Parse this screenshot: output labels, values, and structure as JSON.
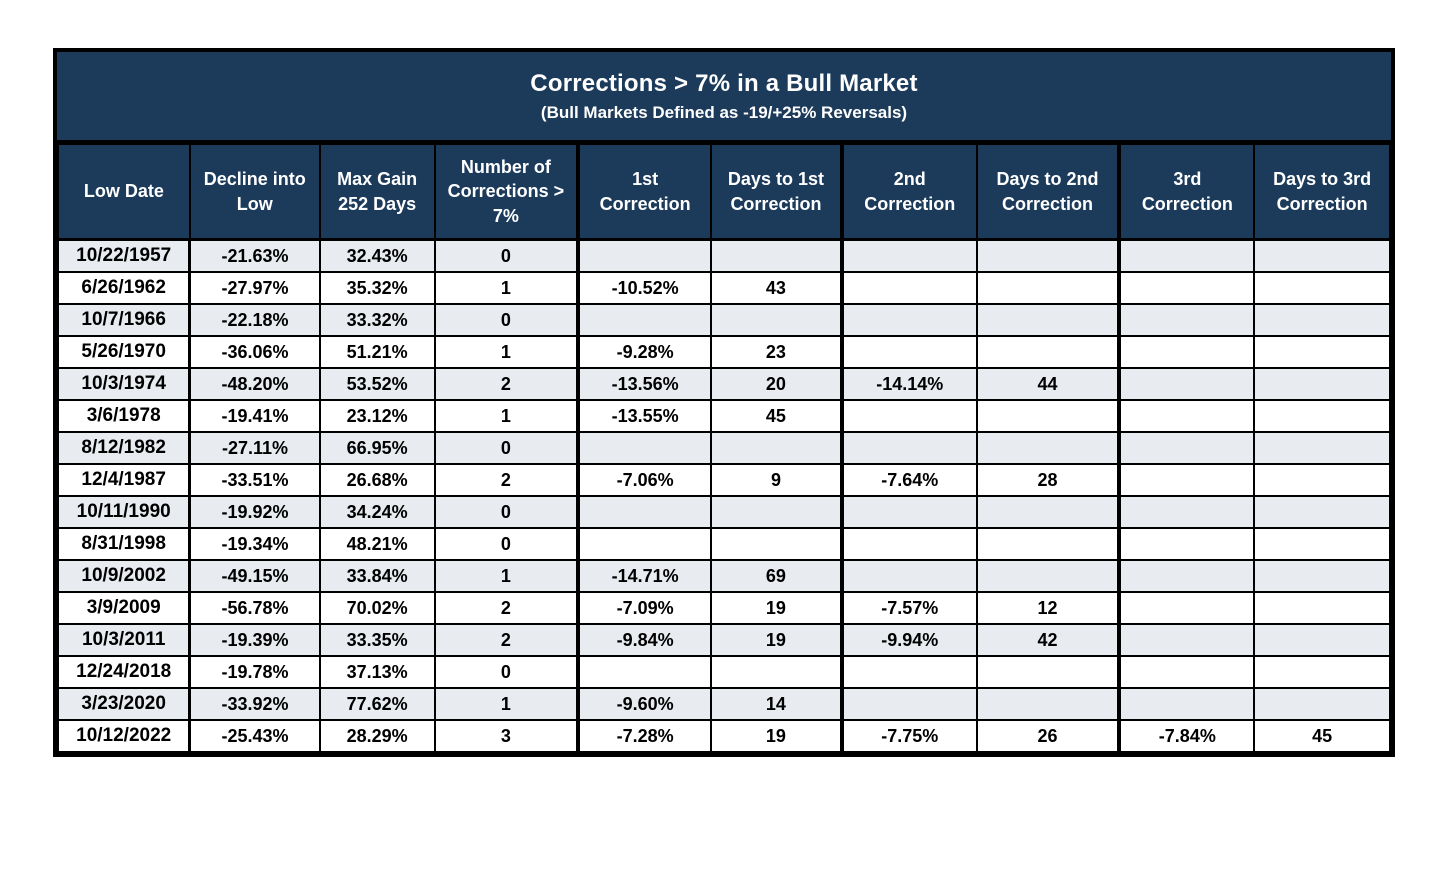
{
  "colors": {
    "header_bg": "#1C3B5B",
    "row_alt_bg": "#E8ECF1",
    "row_bg": "#FFFFFF",
    "border": "#000000",
    "header_text": "#FFFFFF",
    "body_text": "#000000"
  },
  "chart_data": {
    "type": "table",
    "title": "Corrections > 7% in a Bull Market",
    "subtitle": "(Bull Markets Defined as -19/+25% Reversals)",
    "columns": [
      "Low Date",
      "Decline into\nLow",
      "Max Gain\n252 Days",
      "Number of\nCorrections >\n7%",
      "1st\nCorrection",
      "Days to 1st\nCorrection",
      "2nd\nCorrection",
      "Days to 2nd\nCorrection",
      "3rd\nCorrection",
      "Days to 3rd\nCorrection"
    ],
    "rows": [
      [
        "10/22/1957",
        "-21.63%",
        "32.43%",
        "0",
        "",
        "",
        "",
        "",
        "",
        ""
      ],
      [
        "6/26/1962",
        "-27.97%",
        "35.32%",
        "1",
        "-10.52%",
        "43",
        "",
        "",
        "",
        ""
      ],
      [
        "10/7/1966",
        "-22.18%",
        "33.32%",
        "0",
        "",
        "",
        "",
        "",
        "",
        ""
      ],
      [
        "5/26/1970",
        "-36.06%",
        "51.21%",
        "1",
        "-9.28%",
        "23",
        "",
        "",
        "",
        ""
      ],
      [
        "10/3/1974",
        "-48.20%",
        "53.52%",
        "2",
        "-13.56%",
        "20",
        "-14.14%",
        "44",
        "",
        ""
      ],
      [
        "3/6/1978",
        "-19.41%",
        "23.12%",
        "1",
        "-13.55%",
        "45",
        "",
        "",
        "",
        ""
      ],
      [
        "8/12/1982",
        "-27.11%",
        "66.95%",
        "0",
        "",
        "",
        "",
        "",
        "",
        ""
      ],
      [
        "12/4/1987",
        "-33.51%",
        "26.68%",
        "2",
        "-7.06%",
        "9",
        "-7.64%",
        "28",
        "",
        ""
      ],
      [
        "10/11/1990",
        "-19.92%",
        "34.24%",
        "0",
        "",
        "",
        "",
        "",
        "",
        ""
      ],
      [
        "8/31/1998",
        "-19.34%",
        "48.21%",
        "0",
        "",
        "",
        "",
        "",
        "",
        ""
      ],
      [
        "10/9/2002",
        "-49.15%",
        "33.84%",
        "1",
        "-14.71%",
        "69",
        "",
        "",
        "",
        ""
      ],
      [
        "3/9/2009",
        "-56.78%",
        "70.02%",
        "2",
        "-7.09%",
        "19",
        "-7.57%",
        "12",
        "",
        ""
      ],
      [
        "10/3/2011",
        "-19.39%",
        "33.35%",
        "2",
        "-9.84%",
        "19",
        "-9.94%",
        "42",
        "",
        ""
      ],
      [
        "12/24/2018",
        "-19.78%",
        "37.13%",
        "0",
        "",
        "",
        "",
        "",
        "",
        ""
      ],
      [
        "3/23/2020",
        "-33.92%",
        "77.62%",
        "1",
        "-9.60%",
        "14",
        "",
        "",
        "",
        ""
      ],
      [
        "10/12/2022",
        "-25.43%",
        "28.29%",
        "3",
        "-7.28%",
        "19",
        "-7.75%",
        "26",
        "-7.84%",
        "45"
      ]
    ]
  }
}
